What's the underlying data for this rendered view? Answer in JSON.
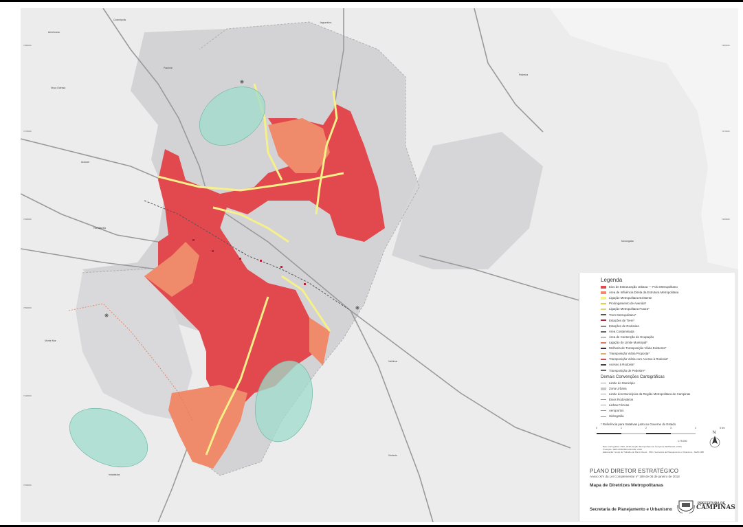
{
  "legend": {
    "title": "Legenda",
    "items": [
      {
        "label": "Eixo de Estruturação Urbana — Polo Metropolitano",
        "color": "#e2494e"
      },
      {
        "label": "Área de Influência Direta da Estrutura Metropolitana",
        "color": "#ef8a6a"
      },
      {
        "label": "Ligação Metropolitana Existente",
        "color": "#f6f08a"
      },
      {
        "label": "Prolongamento de Avenida*",
        "color": "#d8d44a"
      },
      {
        "label": "Ligação Metropolitana Futura*",
        "color": "#e6d36a"
      },
      {
        "label": "Trem Metropolitano*",
        "color": "#555555"
      },
      {
        "label": "Estações de Trem*",
        "color": "#b02432"
      },
      {
        "label": "Estações de Rodovias",
        "color": "#888888"
      },
      {
        "label": "Área Contaminada",
        "color": "#666666"
      },
      {
        "label": "Área de Contenção de Ocupação",
        "color": "#bbbbbb"
      },
      {
        "label": "Ligação do Limite Municipal*",
        "color": "#e07a5a"
      },
      {
        "label": "Melhoria de Transposição Viária Existente*",
        "color": "#333333"
      },
      {
        "label": "Transposição Viária Proposta*",
        "color": "#e0b070"
      },
      {
        "label": "Transposição Viária com Acesso à Rodovia*",
        "color": "#d05050"
      },
      {
        "label": "Acesso à Rodovia*",
        "color": "#444444"
      },
      {
        "label": "Transposição de Pedestre*",
        "color": "#666666"
      }
    ],
    "subtitle": "Demais Convenções Cartográficas",
    "conventions": [
      {
        "label": "Limite do Município"
      },
      {
        "label": "Zona Urbana"
      },
      {
        "label": "Limite dos Municípios da Região Metropolitana de Campinas"
      },
      {
        "label": "Eixos Rodoviários"
      },
      {
        "label": "Linhas Férreas"
      },
      {
        "label": "Aeroportos"
      },
      {
        "label": "Hidrografia"
      }
    ],
    "footnote": "* Referência para tratativas junto ao Governo do Estado"
  },
  "scale": {
    "ticks": [
      "0",
      "1",
      "2",
      "3",
      "4",
      "5 km"
    ],
    "ratio": "1:75.000"
  },
  "credits": [
    "Base Cartográfica: PMC, 2018; Região Metropolitana de Campinas (EMPLASA, 2016)",
    "Produção: SEPLURB/DEPLAN/CDE, 2018",
    "Elaboração: Grupo de Trabalho do Plano Diretor - PMC, Secretaria de Planejamento e Urbanismo - SEPLURB"
  ],
  "titles": {
    "plan": "PLANO DIRETOR ESTRATÉGICO",
    "annex": "Anexo XIV da Lei Complementar nº 189 de 08 de janeiro de 2018",
    "map": "Mapa de Diretrizes Metropolitanas",
    "secretaria": "Secretaria de Planejamento e Urbanismo",
    "pref_top": "PREFEITURA DE",
    "pref_main": "CAMPINAS"
  },
  "colors": {
    "background": "#ededee",
    "urban": "#c9c9cb",
    "red": "#e2494e",
    "orange": "#ef8a6a",
    "yellow": "#f6f08a",
    "teal": "#9fdccb",
    "road": "#9a9a9a"
  }
}
